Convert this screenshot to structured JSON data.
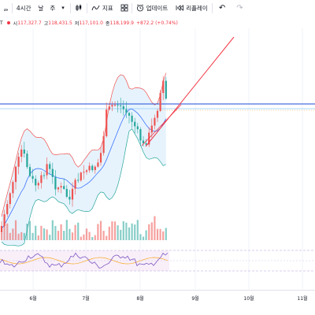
{
  "toolbar": {
    "interval_4h": "4시간",
    "interval_day": "날",
    "interval_week": "주",
    "indicators_label": "지표",
    "update_label": "업데이트",
    "replay_label": "리플레이"
  },
  "ohlc": {
    "open_label": "시",
    "open_value": "117,327.7",
    "high_label": "고",
    "high_value": "118,431.5",
    "low_label": "저",
    "low_value": "117,101.0",
    "close_label": "종",
    "close_value": "118,199.9",
    "change": "+872.2 (+0.74%)"
  },
  "time_axis": {
    "labels": [
      "6월",
      "7월",
      "8월",
      "9월",
      "10월",
      "11월"
    ]
  },
  "colors": {
    "up": "#ef5350",
    "down": "#26a69a",
    "bb_fill": "#e3f2fd",
    "bb_upper": "#ef5350",
    "bb_lower": "#26a69a",
    "bb_middle": "#2962ff",
    "horizontal_line": "#1e4bd8",
    "trend_line": "#f23645",
    "rsi_line": "#7e57c2",
    "rsi_signal": "#f9a825"
  },
  "icons": {
    "undo": "undo-icon",
    "redo": "redo-icon",
    "indicators": "indicators-icon",
    "update": "alert-clock-icon",
    "replay": "replay-icon",
    "bar_style": "candle-style-icon"
  }
}
